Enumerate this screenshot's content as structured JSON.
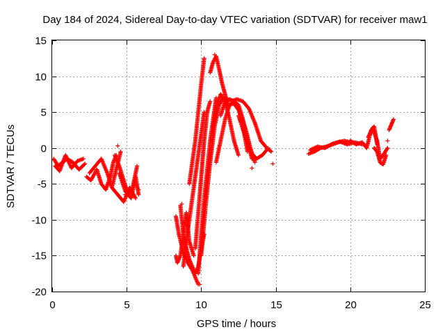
{
  "chart_data": {
    "type": "scatter",
    "title": "Day 184 of 2024, Sidereal Day-to-day VTEC variation (SDTVAR) for receiver maw1",
    "xlabel": "GPS time / hours",
    "ylabel": "SDTVAR / TECUs",
    "xlim": [
      0,
      25
    ],
    "ylim": [
      -20,
      15
    ],
    "xticks": [
      0,
      5,
      10,
      15,
      20,
      25
    ],
    "yticks": [
      -20,
      -15,
      -10,
      -5,
      0,
      5,
      10,
      15
    ],
    "xtick_labels": [
      "0",
      "5",
      "10",
      "15",
      "20",
      "25"
    ],
    "ytick_labels": [
      "-20",
      "-15",
      "-10",
      "-5",
      "0",
      "5",
      "10",
      "15"
    ],
    "grid": true,
    "marker": "+",
    "series": [
      {
        "name": "maw1",
        "color": "#ff0000",
        "tracks": [
          {
            "x": [
              0.1,
              0.4,
              0.7,
              1.0,
              1.4,
              1.8,
              2.2
            ],
            "y": [
              -1.5,
              -2.5,
              -2.0,
              -1.5,
              -2.0,
              -3.0,
              -2.2
            ]
          },
          {
            "x": [
              0.2,
              0.5,
              0.9,
              1.3,
              1.7,
              2.1
            ],
            "y": [
              -2.5,
              -3.2,
              -1.0,
              -2.8,
              -1.8,
              -1.5
            ]
          },
          {
            "x": [
              2.3,
              2.6,
              3.0,
              3.3,
              3.6,
              3.9,
              4.1,
              4.3
            ],
            "y": [
              -4.0,
              -4.5,
              -3.0,
              -5.0,
              -5.8,
              -4.0,
              -2.0,
              -1.0
            ]
          },
          {
            "x": [
              2.5,
              2.9,
              3.3,
              3.7,
              4.0,
              4.3,
              4.6
            ],
            "y": [
              -3.5,
              -2.5,
              -1.5,
              -3.5,
              -5.5,
              -3.0,
              -0.5
            ]
          },
          {
            "x": [
              4.2,
              4.5,
              4.8,
              5.1,
              5.4,
              5.7
            ],
            "y": [
              -1.0,
              -2.5,
              -4.5,
              -6.5,
              -5.5,
              -2.5
            ]
          },
          {
            "x": [
              4.5,
              4.9,
              5.3,
              5.6,
              5.8
            ],
            "y": [
              -3.5,
              -6.0,
              -7.0,
              -4.0,
              -6.5
            ]
          },
          {
            "x": [
              4.0,
              4.4,
              4.8,
              5.2,
              5.6
            ],
            "y": [
              -5.5,
              -6.5,
              -7.5,
              -5.5,
              -7.0
            ]
          },
          {
            "x": [
              8.3,
              8.5,
              8.8,
              9.1,
              9.4,
              9.6,
              9.8
            ],
            "y": [
              -9.5,
              -12.0,
              -14.5,
              -16.0,
              -17.0,
              -18.0,
              -19.0
            ]
          },
          {
            "x": [
              8.3,
              8.4,
              8.6,
              8.8,
              9.0,
              9.2,
              9.5
            ],
            "y": [
              -15.0,
              -16.0,
              -15.0,
              -12.0,
              -9.0,
              -13.0,
              -15.0
            ]
          },
          {
            "x": [
              8.6,
              8.8,
              9.0,
              9.2,
              9.4,
              9.6,
              9.8,
              10.0,
              10.2
            ],
            "y": [
              -8.0,
              -12.0,
              -14.0,
              -15.5,
              -16.5,
              -17.5,
              -16.5,
              -14.0,
              -12.0
            ]
          },
          {
            "x": [
              8.8,
              9.0,
              9.2,
              9.4,
              9.6,
              9.8,
              10.0,
              10.2
            ],
            "y": [
              -16.5,
              -13.0,
              -10.0,
              -7.0,
              -4.0,
              -1.0,
              2.0,
              5.0
            ]
          },
          {
            "x": [
              9.2,
              9.4,
              9.6,
              9.8,
              10.0,
              10.2
            ],
            "y": [
              -5.0,
              -2.0,
              1.0,
              5.0,
              9.0,
              12.5
            ]
          },
          {
            "x": [
              9.6,
              9.8,
              10.0,
              10.2,
              10.4,
              10.6
            ],
            "y": [
              -14.0,
              -9.0,
              -4.0,
              1.0,
              5.0,
              6.5
            ]
          },
          {
            "x": [
              9.8,
              10.0,
              10.2,
              10.4,
              10.6,
              10.8,
              11.0
            ],
            "y": [
              -17.5,
              -12.0,
              -7.0,
              -3.0,
              1.0,
              4.0,
              7.0
            ]
          },
          {
            "x": [
              10.0,
              10.3,
              10.6,
              10.9,
              11.2,
              11.5
            ],
            "y": [
              -15.0,
              -8.0,
              -2.0,
              3.0,
              6.0,
              7.0
            ]
          },
          {
            "x": [
              10.6,
              10.8,
              11.0,
              11.2,
              11.4,
              11.6,
              11.8
            ],
            "y": [
              10.5,
              12.0,
              12.8,
              11.0,
              9.0,
              7.5,
              6.0
            ]
          },
          {
            "x": [
              10.8,
              11.0,
              11.3,
              11.6,
              11.9,
              12.2,
              12.5
            ],
            "y": [
              3.0,
              5.5,
              7.5,
              6.5,
              4.0,
              1.0,
              -1.0
            ]
          },
          {
            "x": [
              11.3,
              11.6,
              11.9,
              12.2,
              12.5,
              12.8,
              13.1,
              13.4
            ],
            "y": [
              4.5,
              6.5,
              6.8,
              6.5,
              6.0,
              4.0,
              1.0,
              -1.5
            ]
          },
          {
            "x": [
              11.0,
              11.3,
              11.6,
              11.9,
              12.2,
              12.5,
              12.8,
              13.1
            ],
            "y": [
              -2.0,
              1.0,
              4.0,
              6.0,
              6.5,
              5.5,
              3.0,
              -0.5
            ]
          },
          {
            "x": [
              12.0,
              12.4,
              12.8,
              13.2,
              13.6,
              14.0,
              14.4,
              14.7
            ],
            "y": [
              6.5,
              6.8,
              6.5,
              5.5,
              3.5,
              1.0,
              0.0,
              -0.5
            ]
          },
          {
            "x": [
              11.8,
              12.2,
              12.6,
              13.0,
              13.3,
              13.6
            ],
            "y": [
              6.0,
              6.2,
              5.0,
              2.5,
              0.0,
              -2.0
            ]
          },
          {
            "x": [
              12.5,
              12.9,
              13.3,
              13.7,
              14.1,
              14.5
            ],
            "y": [
              4.5,
              2.0,
              -0.5,
              -1.5,
              -1.0,
              0.0
            ]
          },
          {
            "x": [
              17.2,
              17.6,
              18.0,
              18.4,
              18.8,
              19.2,
              19.6,
              20.0
            ],
            "y": [
              -0.8,
              -0.5,
              0.0,
              0.2,
              0.5,
              0.8,
              1.0,
              0.8
            ]
          },
          {
            "x": [
              17.3,
              17.8,
              18.3,
              18.8,
              19.3,
              19.8,
              20.3,
              20.8
            ],
            "y": [
              -0.3,
              0.2,
              0.0,
              0.6,
              0.9,
              0.5,
              0.8,
              0.5
            ]
          },
          {
            "x": [
              20.0,
              20.4,
              20.8,
              21.1,
              21.4,
              21.6,
              21.8
            ],
            "y": [
              1.0,
              0.5,
              0.8,
              0.0,
              2.5,
              3.0,
              0.5
            ]
          },
          {
            "x": [
              21.2,
              21.5,
              21.8,
              22.0,
              22.2,
              22.5
            ],
            "y": [
              1.5,
              2.8,
              1.0,
              -1.5,
              -1.0,
              0.0
            ]
          },
          {
            "x": [
              21.6,
              21.8,
              22.0,
              22.2,
              22.4
            ],
            "y": [
              0.0,
              -0.5,
              -2.0,
              -2.3,
              -1.0
            ]
          },
          {
            "x": [
              22.6,
              22.7,
              22.8,
              22.9
            ],
            "y": [
              2.5,
              3.0,
              3.5,
              4.0
            ]
          }
        ],
        "outliers": {
          "x": [
            4.4,
            4.9,
            5.8,
            13.4,
            14.8,
            8.7,
            22.5,
            9.9,
            10.9
          ],
          "y": [
            0.3,
            -6.5,
            -5.8,
            -2.8,
            -2.2,
            -7.8,
            1.0,
            -19.0,
            13.0
          ]
        }
      }
    ]
  }
}
